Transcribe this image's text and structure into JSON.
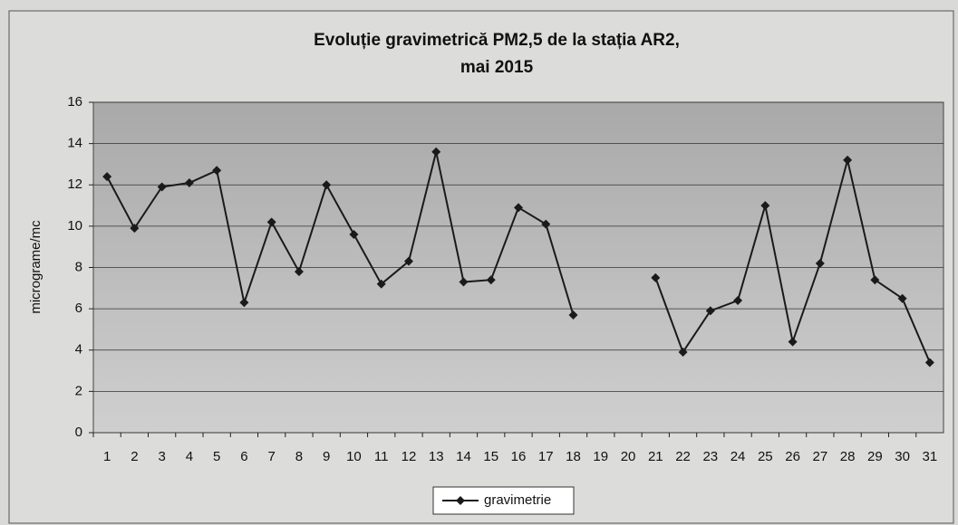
{
  "chart_data": {
    "type": "line",
    "title": [
      "Evoluție  gravimetrică PM2,5 de la stația AR2,",
      "mai 2015"
    ],
    "y_label": "micrograme/mc",
    "categories": [
      "1",
      "2",
      "3",
      "4",
      "5",
      "6",
      "7",
      "8",
      "9",
      "10",
      "11",
      "12",
      "13",
      "14",
      "15",
      "16",
      "17",
      "18",
      "19",
      "20",
      "21",
      "22",
      "23",
      "24",
      "25",
      "26",
      "27",
      "28",
      "29",
      "30",
      "31"
    ],
    "series": [
      {
        "name": "gravimetrie",
        "color": "#1a1a1a",
        "values": [
          12.4,
          9.9,
          11.9,
          12.1,
          12.7,
          6.3,
          10.2,
          7.8,
          12.0,
          9.6,
          7.2,
          8.3,
          13.6,
          7.3,
          7.4,
          10.9,
          10.1,
          5.7,
          null,
          null,
          7.5,
          3.9,
          5.9,
          6.4,
          11.0,
          4.4,
          8.2,
          13.2,
          7.4,
          6.5,
          3.4
        ]
      }
    ],
    "ylim": [
      0,
      16
    ],
    "yticks": [
      0,
      2,
      4,
      6,
      8,
      10,
      12,
      14,
      16
    ],
    "grid": true,
    "legend": "bottom"
  }
}
